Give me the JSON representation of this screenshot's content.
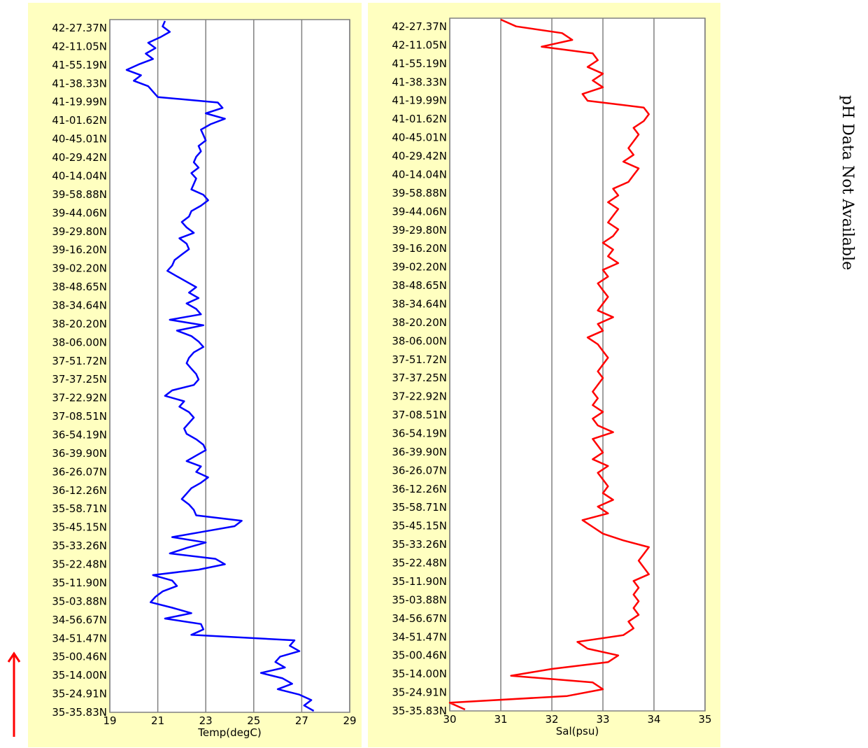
{
  "colors": {
    "panel_bg": "#ffffc0",
    "temp_line": "#0000ff",
    "sal_line": "#ff0000",
    "grid": "#808080",
    "arrow": "#ff0000"
  },
  "ph_note": "pH Data Not Available",
  "arrow_icon": "up-arrow-icon",
  "chart_data": [
    {
      "type": "line",
      "xlabel": "Temp(degC)",
      "xlim": [
        19,
        29
      ],
      "x_ticks": [
        19,
        21,
        23,
        25,
        27,
        29
      ],
      "y_ticks": [
        "42-27.37N",
        "42-11.05N",
        "41-55.19N",
        "41-38.33N",
        "41-19.99N",
        "41-01.62N",
        "40-45.01N",
        "40-29.42N",
        "40-14.04N",
        "39-58.88N",
        "39-44.06N",
        "39-29.80N",
        "39-16.20N",
        "39-02.20N",
        "38-48.65N",
        "38-34.64N",
        "38-20.20N",
        "38-06.00N",
        "37-51.72N",
        "37-37.25N",
        "37-22.92N",
        "37-08.51N",
        "36-54.19N",
        "36-39.90N",
        "36-26.07N",
        "36-12.26N",
        "35-58.71N",
        "35-45.15N",
        "35-33.26N",
        "35-22.48N",
        "35-11.90N",
        "35-03.88N",
        "34-56.67N",
        "34-51.47N",
        "35-00.46N",
        "35-14.00N",
        "35-24.91N",
        "35-35.83N"
      ],
      "grid": "vertical",
      "series": [
        {
          "color": "#0000ff",
          "values": [
            21.3,
            21.2,
            21.5,
            21.1,
            20.6,
            20.9,
            20.5,
            20.8,
            20.2,
            19.7,
            20.3,
            20.0,
            20.6,
            20.8,
            21.0,
            23.5,
            23.7,
            23.0,
            23.8,
            23.2,
            22.8,
            22.9,
            23.0,
            22.7,
            22.8,
            22.6,
            22.5,
            22.7,
            22.4,
            22.6,
            22.5,
            22.4,
            22.9,
            23.1,
            22.8,
            22.4,
            22.3,
            22.0,
            22.2,
            22.5,
            21.9,
            22.2,
            22.3,
            22.0,
            21.7,
            21.6,
            21.4,
            21.8,
            22.2,
            22.6,
            22.3,
            22.7,
            22.2,
            22.6,
            22.8,
            21.5,
            22.9,
            21.8,
            22.4,
            22.7,
            22.9,
            22.5,
            22.3,
            22.2,
            22.4,
            22.6,
            22.7,
            22.5,
            21.6,
            21.3,
            22.1,
            21.9,
            22.3,
            22.5,
            22.3,
            22.1,
            22.2,
            22.6,
            22.9,
            23.0,
            22.6,
            22.2,
            22.8,
            22.6,
            23.1,
            22.8,
            22.4,
            22.2,
            22.0,
            22.3,
            22.5,
            22.6,
            24.5,
            24.2,
            22.9,
            21.6,
            23.0,
            22.2,
            21.5,
            23.4,
            23.8,
            22.7,
            20.8,
            21.6,
            21.8,
            21.2,
            20.9,
            20.7,
            21.6,
            22.4,
            21.3,
            22.8,
            22.9,
            22.4,
            26.7,
            26.5,
            26.9,
            26.1,
            25.9,
            26.3,
            25.3,
            26.2,
            26.6,
            26.0,
            26.9,
            27.4,
            27.1,
            27.5
          ]
        }
      ]
    },
    {
      "type": "line",
      "xlabel": "Sal(psu)",
      "xlim": [
        30,
        35
      ],
      "x_ticks": [
        30,
        31,
        32,
        33,
        34,
        35
      ],
      "y_ticks": [
        "42-27.37N",
        "42-11.05N",
        "41-55.19N",
        "41-38.33N",
        "41-19.99N",
        "41-01.62N",
        "40-45.01N",
        "40-29.42N",
        "40-14.04N",
        "39-58.88N",
        "39-44.06N",
        "39-29.80N",
        "39-16.20N",
        "39-02.20N",
        "38-48.65N",
        "38-34.64N",
        "38-20.20N",
        "38-06.00N",
        "37-51.72N",
        "37-37.25N",
        "37-22.92N",
        "37-08.51N",
        "36-54.19N",
        "36-39.90N",
        "36-26.07N",
        "36-12.26N",
        "35-58.71N",
        "35-45.15N",
        "35-33.26N",
        "35-22.48N",
        "35-11.90N",
        "35-03.88N",
        "34-56.67N",
        "34-51.47N",
        "35-00.46N",
        "35-14.00N",
        "35-24.91N",
        "35-35.83N"
      ],
      "grid": "vertical",
      "series": [
        {
          "color": "#ff0000",
          "values": [
            31.0,
            31.3,
            32.2,
            32.4,
            31.8,
            32.8,
            32.9,
            32.7,
            33.0,
            32.8,
            33.0,
            32.6,
            32.7,
            33.8,
            33.9,
            33.8,
            33.6,
            33.7,
            33.6,
            33.5,
            33.6,
            33.4,
            33.7,
            33.6,
            33.5,
            33.2,
            33.3,
            33.1,
            33.3,
            33.2,
            33.1,
            33.3,
            33.2,
            33.0,
            33.2,
            33.1,
            33.3,
            33.0,
            33.1,
            32.9,
            33.0,
            33.1,
            33.0,
            32.9,
            33.2,
            32.9,
            33.0,
            32.7,
            32.9,
            33.0,
            33.1,
            33.0,
            32.9,
            33.0,
            32.9,
            32.8,
            32.9,
            32.8,
            33.0,
            32.8,
            32.9,
            33.2,
            32.8,
            32.9,
            33.0,
            32.8,
            33.1,
            32.9,
            33.0,
            33.1,
            33.0,
            33.2,
            32.9,
            33.1,
            32.6,
            32.8,
            33.0,
            33.4,
            33.9,
            33.8,
            33.7,
            33.8,
            33.9,
            33.6,
            33.7,
            33.6,
            33.7,
            33.6,
            33.7,
            33.5,
            33.6,
            33.4,
            32.5,
            32.7,
            33.3,
            33.1,
            32.0,
            31.2,
            32.8,
            33.0,
            32.3,
            30.0,
            30.3
          ]
        }
      ]
    }
  ]
}
